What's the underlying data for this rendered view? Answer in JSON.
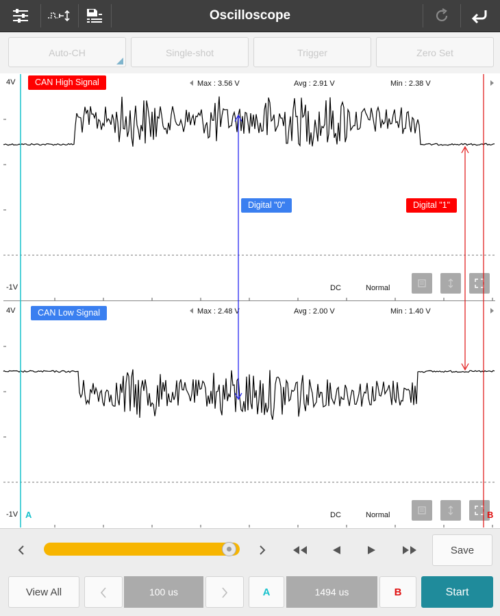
{
  "header": {
    "title": "Oscilloscope",
    "left_icons": [
      "sliders-icon",
      "signal-toggle-icon",
      "save-list-icon"
    ],
    "right_icons": [
      "refresh-icon",
      "back-icon"
    ]
  },
  "toolbar": {
    "buttons": [
      "Auto-CH",
      "Single-shot",
      "Trigger",
      "Zero Set"
    ]
  },
  "channels": [
    {
      "name": "CAN High Signal",
      "color": "#ff0000",
      "ymax_label": "4V",
      "ymin_label": "-1V",
      "max": "Max : 3.56 V",
      "avg": "Avg : 2.91 V",
      "min": "Min : 2.38 V",
      "coupling": "DC",
      "mode": "Normal"
    },
    {
      "name": "CAN Low Signal",
      "color": "#3a7ff0",
      "ymax_label": "4V",
      "ymin_label": "-1V",
      "max": "Max : 2.48 V",
      "avg": "Avg : 2.00 V",
      "min": "Min : 1.40 V",
      "coupling": "DC",
      "mode": "Normal"
    }
  ],
  "annotations": {
    "digital0": "Digital \"0\"",
    "digital1": "Digital \"1\""
  },
  "cursors": {
    "a_label": "A",
    "b_label": "B",
    "a_color": "#18c2cc",
    "b_color": "#e01010"
  },
  "controls": {
    "save": "Save",
    "view_all": "View All",
    "timebase": "100 us",
    "cursor_a": "A",
    "cursor_delta": "1494 us",
    "cursor_b": "B",
    "start": "Start",
    "slider_position": 0.98
  }
}
